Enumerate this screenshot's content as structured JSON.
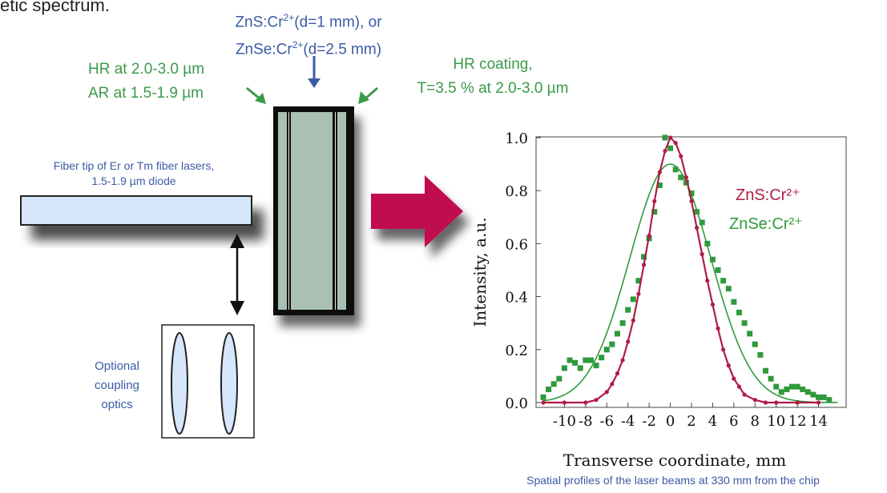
{
  "top_text": "etic spectrum.",
  "crystal": {
    "line1_prefix": "ZnS:Cr",
    "line1_sup": "2+",
    "line1_suffix": "(d=1 mm), or",
    "line2_prefix": "ZnSe:Cr",
    "line2_sup": "2+",
    "line2_suffix": "(d=2.5 mm)"
  },
  "left_coating": {
    "line1": "HR at 2.0-3.0 µm",
    "line2": "AR at 1.5-1.9 µm"
  },
  "right_coating": {
    "line1": "HR coating,",
    "line2": "T=3.5 % at 2.0-3.0 µm"
  },
  "fiber_label": {
    "line1": "Fiber tip of Er  or Tm fiber lasers,",
    "line2": "1.5-1.9 µm diode"
  },
  "coupling_label": {
    "line1": "Optional",
    "line2": "coupling",
    "line3": "optics"
  },
  "caption": "Spatial profiles of the laser beams at 330 mm from the chip",
  "colors": {
    "label_blue": "#3b5ba5",
    "label_green": "#3a9a4a",
    "arrow_magenta": "#c0104f",
    "crystal_fill": "#a8c1b3",
    "fiber_fill": "#d6e6fb",
    "zns_series": "#b01c45",
    "znse_series": "#2f9a3c"
  },
  "chart_data": {
    "type": "scatter",
    "xlabel": "Transverse coordinate, mm",
    "ylabel": "Intensity, a.u.",
    "xlim": [
      -12,
      16
    ],
    "ylim": [
      0,
      1.0
    ],
    "x_ticks": [
      -10,
      -8,
      -6,
      -4,
      -2,
      0,
      2,
      4,
      6,
      8,
      10,
      12,
      14
    ],
    "x_tick_labels": [
      "-10",
      "-8",
      "-6",
      "-4",
      "-2",
      "0",
      "2",
      "4",
      "6",
      "8",
      "10",
      "12",
      "14"
    ],
    "y_ticks": [
      0.0,
      0.2,
      0.4,
      0.6,
      0.8,
      1.0
    ],
    "y_tick_labels": [
      "0.0",
      "0.2",
      "0.4",
      "0.6",
      "0.8",
      "1.0"
    ],
    "grid": false,
    "legend_position": "right-middle",
    "series": [
      {
        "name": "ZnS:Cr²⁺",
        "color": "#b01c45",
        "points": [
          [
            -12,
            0.0
          ],
          [
            -10,
            0.0
          ],
          [
            -8,
            0.0
          ],
          [
            -7,
            0.01
          ],
          [
            -6,
            0.04
          ],
          [
            -5.5,
            0.07
          ],
          [
            -5,
            0.11
          ],
          [
            -4.5,
            0.16
          ],
          [
            -4,
            0.23
          ],
          [
            -3.5,
            0.31
          ],
          [
            -3,
            0.41
          ],
          [
            -2.5,
            0.52
          ],
          [
            -2,
            0.63
          ],
          [
            -1.5,
            0.76
          ],
          [
            -1,
            0.87
          ],
          [
            -0.5,
            0.95
          ],
          [
            0,
            1.0
          ],
          [
            0.5,
            0.98
          ],
          [
            1,
            0.93
          ],
          [
            1.5,
            0.85
          ],
          [
            2,
            0.76
          ],
          [
            2.5,
            0.66
          ],
          [
            3,
            0.56
          ],
          [
            3.5,
            0.46
          ],
          [
            4,
            0.37
          ],
          [
            4.5,
            0.28
          ],
          [
            5,
            0.2
          ],
          [
            5.5,
            0.14
          ],
          [
            6,
            0.09
          ],
          [
            6.5,
            0.06
          ],
          [
            7,
            0.03
          ],
          [
            8,
            0.01
          ],
          [
            9,
            0.0
          ],
          [
            10,
            0.0
          ],
          [
            12,
            0.0
          ],
          [
            14,
            0.0
          ]
        ]
      },
      {
        "name": "ZnSe:Cr²⁺",
        "color": "#2f9a3c",
        "points": [
          [
            -12,
            0.02
          ],
          [
            -11.5,
            0.05
          ],
          [
            -11,
            0.07
          ],
          [
            -10.5,
            0.09
          ],
          [
            -10,
            0.13
          ],
          [
            -9.5,
            0.16
          ],
          [
            -9,
            0.15
          ],
          [
            -8.5,
            0.13
          ],
          [
            -8,
            0.16
          ],
          [
            -7.5,
            0.16
          ],
          [
            -7,
            0.14
          ],
          [
            -6.5,
            0.17
          ],
          [
            -6,
            0.2
          ],
          [
            -5.5,
            0.22
          ],
          [
            -5,
            0.26
          ],
          [
            -4.5,
            0.3
          ],
          [
            -4,
            0.35
          ],
          [
            -3.5,
            0.39
          ],
          [
            -3,
            0.46
          ],
          [
            -2.5,
            0.55
          ],
          [
            -2,
            0.62
          ],
          [
            -1.5,
            0.72
          ],
          [
            -1,
            0.82
          ],
          [
            -0.5,
            1.0
          ],
          [
            0,
            0.96
          ],
          [
            0.5,
            0.88
          ],
          [
            1,
            0.85
          ],
          [
            1.5,
            0.83
          ],
          [
            2,
            0.79
          ],
          [
            2.5,
            0.72
          ],
          [
            3,
            0.68
          ],
          [
            3.5,
            0.6
          ],
          [
            4,
            0.54
          ],
          [
            4.5,
            0.5
          ],
          [
            5,
            0.46
          ],
          [
            5.5,
            0.43
          ],
          [
            6,
            0.38
          ],
          [
            6.5,
            0.34
          ],
          [
            7,
            0.3
          ],
          [
            7.5,
            0.26
          ],
          [
            8,
            0.22
          ],
          [
            8.5,
            0.18
          ],
          [
            9,
            0.12
          ],
          [
            9.5,
            0.09
          ],
          [
            10,
            0.06
          ],
          [
            10.5,
            0.04
          ],
          [
            11,
            0.05
          ],
          [
            11.5,
            0.06
          ],
          [
            12,
            0.06
          ],
          [
            12.5,
            0.05
          ],
          [
            13,
            0.04
          ],
          [
            13.5,
            0.03
          ],
          [
            14,
            0.02
          ],
          [
            14.5,
            0.02
          ],
          [
            15,
            0.01
          ]
        ],
        "fit_curve": {
          "type": "gaussian",
          "amplitude": 0.9,
          "center": 0.0,
          "fwhm": 9.0
        }
      }
    ]
  }
}
